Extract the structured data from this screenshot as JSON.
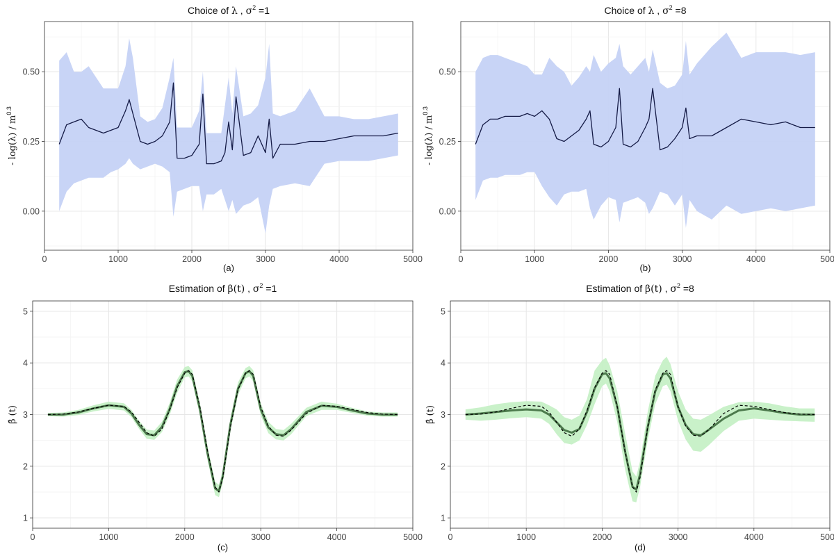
{
  "chart_data": [
    {
      "panel": "a",
      "type": "line",
      "title": {
        "prefix": "Choice of ",
        "symbol": "λ",
        "mid": " ,  ",
        "sym2": "σ",
        "sup": "2",
        "suffix": " =1"
      },
      "xlabel": "(a)",
      "ylabel": {
        "text": "- log(λ) / m",
        "sup": "0.3"
      },
      "xlim": [
        0,
        5000
      ],
      "ylim": [
        -0.14,
        0.68
      ],
      "xticks": [
        0,
        1000,
        2000,
        3000,
        4000,
        5000
      ],
      "xtick_labels": [
        "0",
        "1000",
        "2000",
        "3000",
        "4000",
        "5000"
      ],
      "yticks": [
        0.0,
        0.25,
        0.5
      ],
      "ytick_labels": [
        "0.00",
        "0.25",
        "0.50"
      ],
      "grid": true,
      "x": [
        200,
        300,
        400,
        500,
        600,
        700,
        800,
        900,
        1000,
        1100,
        1150,
        1200,
        1300,
        1400,
        1500,
        1600,
        1700,
        1750,
        1800,
        1900,
        2000,
        2100,
        2150,
        2200,
        2300,
        2400,
        2450,
        2500,
        2550,
        2600,
        2700,
        2800,
        2900,
        3000,
        3050,
        3100,
        3200,
        3400,
        3600,
        3800,
        4000,
        4200,
        4400,
        4600,
        4800
      ],
      "series": [
        {
          "values": [
            0.24,
            0.31,
            0.32,
            0.33,
            0.3,
            0.29,
            0.28,
            0.29,
            0.3,
            0.36,
            0.4,
            0.35,
            0.25,
            0.24,
            0.25,
            0.27,
            0.32,
            0.46,
            0.19,
            0.19,
            0.2,
            0.24,
            0.42,
            0.17,
            0.17,
            0.18,
            0.21,
            0.32,
            0.22,
            0.41,
            0.2,
            0.21,
            0.27,
            0.21,
            0.33,
            0.19,
            0.24,
            0.24,
            0.25,
            0.25,
            0.26,
            0.27,
            0.27,
            0.27,
            0.28
          ]
        }
      ],
      "band": {
        "lower": [
          0.0,
          0.07,
          0.1,
          0.11,
          0.12,
          0.12,
          0.12,
          0.14,
          0.15,
          0.17,
          0.19,
          0.17,
          0.15,
          0.16,
          0.17,
          0.16,
          0.14,
          -0.02,
          0.07,
          0.08,
          0.09,
          0.09,
          0.0,
          0.06,
          0.06,
          0.08,
          0.04,
          0.0,
          0.04,
          -0.01,
          0.02,
          0.03,
          0.05,
          -0.08,
          0.02,
          0.08,
          0.09,
          0.1,
          0.09,
          0.17,
          0.18,
          0.18,
          0.18,
          0.19,
          0.2
        ],
        "upper": [
          0.54,
          0.57,
          0.5,
          0.5,
          0.52,
          0.48,
          0.44,
          0.44,
          0.44,
          0.52,
          0.62,
          0.55,
          0.34,
          0.32,
          0.33,
          0.37,
          0.48,
          0.55,
          0.3,
          0.3,
          0.3,
          0.36,
          0.5,
          0.28,
          0.28,
          0.28,
          0.38,
          0.48,
          0.35,
          0.52,
          0.34,
          0.35,
          0.38,
          0.48,
          0.6,
          0.35,
          0.34,
          0.36,
          0.44,
          0.34,
          0.34,
          0.33,
          0.33,
          0.34,
          0.35
        ]
      },
      "colors": {
        "line": "#141a45",
        "band": "#c5d2f5"
      }
    },
    {
      "panel": "b",
      "type": "line",
      "title": {
        "prefix": "Choice of ",
        "symbol": "λ",
        "mid": " ,  ",
        "sym2": "σ",
        "sup": "2",
        "suffix": " =8"
      },
      "xlabel": "(b)",
      "ylabel": {
        "text": "- log(λ) / m",
        "sup": "0.3"
      },
      "xlim": [
        0,
        5000
      ],
      "ylim": [
        -0.14,
        0.68
      ],
      "xticks": [
        0,
        1000,
        2000,
        3000,
        4000,
        5000
      ],
      "xtick_labels": [
        "0",
        "1000",
        "2000",
        "3000",
        "4000",
        "5000"
      ],
      "yticks": [
        0.0,
        0.25,
        0.5
      ],
      "ytick_labels": [
        "0.00",
        "0.25",
        "0.50"
      ],
      "grid": true,
      "x": [
        200,
        300,
        400,
        500,
        600,
        700,
        800,
        900,
        1000,
        1100,
        1200,
        1300,
        1400,
        1500,
        1600,
        1700,
        1750,
        1800,
        1900,
        2000,
        2100,
        2150,
        2200,
        2300,
        2400,
        2500,
        2550,
        2600,
        2700,
        2800,
        2900,
        3000,
        3050,
        3100,
        3200,
        3400,
        3600,
        3800,
        4000,
        4200,
        4400,
        4600,
        4800
      ],
      "series": [
        {
          "values": [
            0.24,
            0.31,
            0.33,
            0.33,
            0.34,
            0.34,
            0.34,
            0.35,
            0.34,
            0.36,
            0.33,
            0.26,
            0.25,
            0.27,
            0.29,
            0.33,
            0.36,
            0.24,
            0.23,
            0.25,
            0.3,
            0.44,
            0.24,
            0.23,
            0.25,
            0.3,
            0.33,
            0.44,
            0.22,
            0.23,
            0.26,
            0.3,
            0.37,
            0.26,
            0.27,
            0.27,
            0.3,
            0.33,
            0.32,
            0.31,
            0.32,
            0.3,
            0.3
          ]
        }
      ],
      "band": {
        "lower": [
          0.04,
          0.11,
          0.12,
          0.12,
          0.13,
          0.13,
          0.13,
          0.14,
          0.14,
          0.09,
          0.05,
          0.02,
          0.06,
          0.07,
          0.07,
          0.08,
          0.01,
          -0.03,
          0.02,
          0.05,
          0.04,
          -0.04,
          0.03,
          0.04,
          0.05,
          0.03,
          -0.01,
          0.01,
          0.07,
          0.06,
          0.02,
          0.06,
          -0.06,
          0.04,
          0.0,
          -0.03,
          0.02,
          -0.01,
          0.0,
          0.01,
          0.0,
          0.01,
          0.02
        ],
        "upper": [
          0.5,
          0.55,
          0.56,
          0.56,
          0.55,
          0.54,
          0.53,
          0.52,
          0.49,
          0.49,
          0.55,
          0.52,
          0.5,
          0.45,
          0.48,
          0.52,
          0.5,
          0.56,
          0.5,
          0.53,
          0.55,
          0.6,
          0.52,
          0.49,
          0.52,
          0.55,
          0.5,
          0.58,
          0.46,
          0.44,
          0.45,
          0.49,
          0.61,
          0.49,
          0.53,
          0.59,
          0.64,
          0.55,
          0.57,
          0.57,
          0.57,
          0.56,
          0.57
        ]
      },
      "colors": {
        "line": "#141a45",
        "band": "#c5d2f5"
      }
    },
    {
      "panel": "c",
      "type": "line",
      "title": {
        "prefix": "Estimation of ",
        "symbol": "β(t)",
        "mid": " ,  ",
        "sym2": "σ",
        "sup": "2",
        "suffix": " =1"
      },
      "xlabel": "(c)",
      "ylabel": {
        "text": "β̂ (t)",
        "sup": ""
      },
      "xlim": [
        0,
        5000
      ],
      "ylim": [
        0.8,
        5.2
      ],
      "xticks": [
        0,
        1000,
        2000,
        3000,
        4000,
        5000
      ],
      "xtick_labels": [
        "0",
        "1000",
        "2000",
        "3000",
        "4000",
        "5000"
      ],
      "yticks": [
        1,
        2,
        3,
        4,
        5
      ],
      "ytick_labels": [
        "1",
        "2",
        "3",
        "4",
        "5"
      ],
      "grid": true,
      "x": [
        200,
        400,
        600,
        800,
        1000,
        1200,
        1300,
        1400,
        1500,
        1600,
        1700,
        1800,
        1900,
        2000,
        2050,
        2100,
        2200,
        2300,
        2400,
        2450,
        2500,
        2600,
        2700,
        2800,
        2850,
        2900,
        3000,
        3100,
        3200,
        3300,
        3400,
        3600,
        3800,
        4000,
        4200,
        4400,
        4600,
        4800
      ],
      "series": [
        {
          "values": [
            3.0,
            3.0,
            3.04,
            3.12,
            3.18,
            3.15,
            3.02,
            2.8,
            2.62,
            2.6,
            2.76,
            3.1,
            3.55,
            3.82,
            3.84,
            3.75,
            3.1,
            2.25,
            1.57,
            1.52,
            1.8,
            2.8,
            3.5,
            3.8,
            3.84,
            3.75,
            3.1,
            2.75,
            2.62,
            2.6,
            2.72,
            3.05,
            3.17,
            3.15,
            3.08,
            3.02,
            3.0,
            3.0
          ]
        },
        {
          "values": [
            3.0,
            3.01,
            3.05,
            3.12,
            3.18,
            3.16,
            3.05,
            2.85,
            2.65,
            2.58,
            2.72,
            3.08,
            3.52,
            3.8,
            3.85,
            3.78,
            3.15,
            2.3,
            1.6,
            1.5,
            1.78,
            2.75,
            3.48,
            3.8,
            3.85,
            3.78,
            3.15,
            2.78,
            2.6,
            2.58,
            2.7,
            3.02,
            3.18,
            3.16,
            3.1,
            3.04,
            3.01,
            3.0
          ]
        }
      ],
      "band": {
        "lower": [
          2.97,
          2.96,
          2.99,
          3.06,
          3.11,
          3.08,
          2.95,
          2.72,
          2.53,
          2.51,
          2.66,
          2.98,
          3.42,
          3.72,
          3.74,
          3.64,
          2.98,
          2.12,
          1.44,
          1.4,
          1.68,
          2.68,
          3.38,
          3.7,
          3.74,
          3.64,
          2.98,
          2.64,
          2.52,
          2.5,
          2.62,
          2.97,
          3.09,
          3.09,
          3.03,
          2.98,
          2.96,
          2.96
        ],
        "upper": [
          3.03,
          3.04,
          3.09,
          3.18,
          3.25,
          3.22,
          3.09,
          2.88,
          2.71,
          2.69,
          2.86,
          3.22,
          3.68,
          3.92,
          3.94,
          3.86,
          3.22,
          2.38,
          1.7,
          1.64,
          1.92,
          2.92,
          3.62,
          3.9,
          3.94,
          3.86,
          3.22,
          2.86,
          2.72,
          2.7,
          2.82,
          3.13,
          3.25,
          3.21,
          3.13,
          3.06,
          3.04,
          3.04
        ]
      },
      "colors": {
        "line": "#4d7a4d",
        "reference": "#000000",
        "band": "#c6f0c6"
      }
    },
    {
      "panel": "d",
      "type": "line",
      "title": {
        "prefix": "Estimation of ",
        "symbol": "β(t)",
        "mid": " ,  ",
        "sym2": "σ",
        "sup": "2",
        "suffix": " =8"
      },
      "xlabel": "(d)",
      "ylabel": {
        "text": "β̂ (t)",
        "sup": ""
      },
      "xlim": [
        0,
        5000
      ],
      "ylim": [
        0.8,
        5.2
      ],
      "xticks": [
        0,
        1000,
        2000,
        3000,
        4000,
        5000
      ],
      "xtick_labels": [
        "0",
        "1000",
        "2000",
        "3000",
        "4000",
        "5000"
      ],
      "yticks": [
        1,
        2,
        3,
        4,
        5
      ],
      "ytick_labels": [
        "1",
        "2",
        "3",
        "4",
        "5"
      ],
      "grid": true,
      "x": [
        200,
        400,
        600,
        800,
        1000,
        1200,
        1300,
        1400,
        1500,
        1600,
        1700,
        1800,
        1900,
        2000,
        2050,
        2100,
        2200,
        2300,
        2400,
        2450,
        2500,
        2600,
        2700,
        2800,
        2850,
        2900,
        3000,
        3100,
        3200,
        3300,
        3400,
        3600,
        3800,
        4000,
        4200,
        4400,
        4600,
        4800
      ],
      "series": [
        {
          "values": [
            3.0,
            3.02,
            3.05,
            3.08,
            3.1,
            3.08,
            3.0,
            2.85,
            2.7,
            2.65,
            2.72,
            3.05,
            3.5,
            3.78,
            3.8,
            3.7,
            3.15,
            2.3,
            1.6,
            1.55,
            1.85,
            2.75,
            3.45,
            3.78,
            3.8,
            3.7,
            3.15,
            2.8,
            2.62,
            2.6,
            2.7,
            2.92,
            3.08,
            3.12,
            3.08,
            3.03,
            3.0,
            3.0
          ]
        },
        {
          "values": [
            3.0,
            3.01,
            3.05,
            3.12,
            3.18,
            3.16,
            3.05,
            2.85,
            2.65,
            2.58,
            2.72,
            3.08,
            3.52,
            3.8,
            3.85,
            3.78,
            3.15,
            2.3,
            1.6,
            1.5,
            1.78,
            2.75,
            3.48,
            3.8,
            3.85,
            3.78,
            3.15,
            2.78,
            2.6,
            2.58,
            2.7,
            3.02,
            3.18,
            3.16,
            3.1,
            3.04,
            3.01,
            3.0
          ]
        }
      ],
      "band": {
        "lower": [
          2.9,
          2.88,
          2.9,
          2.93,
          2.95,
          2.92,
          2.82,
          2.62,
          2.45,
          2.42,
          2.5,
          2.8,
          3.2,
          3.55,
          3.6,
          3.45,
          2.85,
          1.95,
          1.32,
          1.3,
          1.6,
          2.5,
          3.2,
          3.55,
          3.58,
          3.45,
          2.88,
          2.52,
          2.3,
          2.28,
          2.4,
          2.68,
          2.88,
          2.92,
          2.9,
          2.88,
          2.87,
          2.86
        ],
        "upper": [
          3.1,
          3.14,
          3.2,
          3.24,
          3.26,
          3.25,
          3.18,
          3.1,
          2.95,
          2.9,
          2.98,
          3.3,
          3.85,
          4.05,
          4.1,
          3.95,
          3.45,
          2.65,
          1.9,
          1.8,
          2.1,
          3.05,
          3.75,
          4.05,
          4.12,
          3.98,
          3.45,
          3.1,
          2.92,
          2.9,
          2.98,
          3.15,
          3.24,
          3.25,
          3.22,
          3.16,
          3.12,
          3.12
        ]
      },
      "colors": {
        "line": "#4d7a4d",
        "reference": "#000000",
        "band": "#c6f0c6"
      }
    }
  ]
}
